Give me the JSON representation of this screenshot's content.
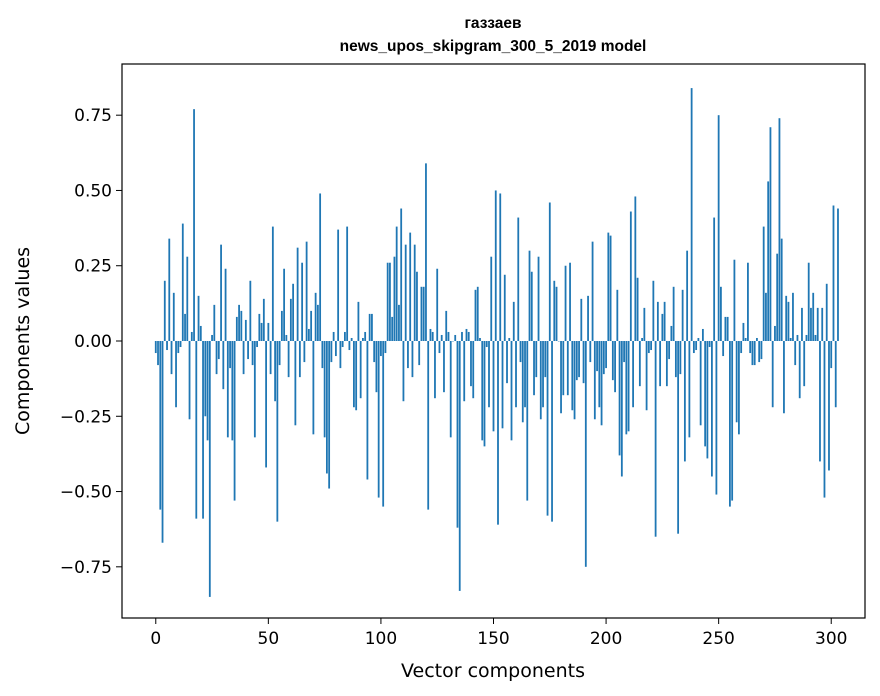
{
  "chart_data": {
    "type": "bar",
    "title_line1": "газзаев",
    "title_line2": "news_upos_skipgram_300_5_2019 model",
    "xlabel": "Vector components",
    "ylabel": "Components values",
    "xlim": [
      -15,
      315
    ],
    "ylim": [
      -0.92,
      0.92
    ],
    "xticks": [
      0,
      50,
      100,
      150,
      200,
      250,
      300
    ],
    "yticks": [
      -0.75,
      -0.5,
      -0.25,
      0.0,
      0.25,
      0.5,
      0.75
    ],
    "ytick_labels": [
      "−0.75",
      "−0.50",
      "−0.25",
      "0.00",
      "0.25",
      "0.50",
      "0.75"
    ],
    "xtick_labels": [
      "0",
      "50",
      "100",
      "150",
      "200",
      "250",
      "300"
    ],
    "bar_color": "#1f77b4",
    "values": [
      -0.04,
      -0.08,
      -0.56,
      -0.67,
      0.2,
      -0.03,
      0.34,
      -0.11,
      0.16,
      -0.22,
      -0.04,
      -0.02,
      0.39,
      0.09,
      0.28,
      -0.26,
      0.03,
      0.77,
      -0.59,
      0.15,
      0.05,
      -0.59,
      -0.25,
      -0.33,
      -0.85,
      0.02,
      0.12,
      -0.11,
      -0.06,
      0.32,
      -0.16,
      0.24,
      -0.32,
      -0.09,
      -0.33,
      -0.53,
      0.08,
      0.12,
      0.1,
      -0.11,
      0.07,
      -0.06,
      0.2,
      -0.08,
      -0.32,
      -0.02,
      0.09,
      0.06,
      0.14,
      -0.42,
      0.06,
      -0.11,
      0.38,
      -0.2,
      -0.6,
      -0.08,
      0.1,
      0.24,
      0.02,
      -0.12,
      0.14,
      0.19,
      -0.28,
      0.31,
      -0.12,
      0.26,
      -0.07,
      0.33,
      0.04,
      0.1,
      -0.31,
      0.16,
      0.12,
      0.49,
      -0.09,
      -0.32,
      -0.44,
      -0.49,
      -0.07,
      0.03,
      -0.05,
      0.37,
      -0.09,
      -0.02,
      0.03,
      0.38,
      -0.03,
      0.01,
      -0.22,
      -0.23,
      0.13,
      -0.19,
      0.01,
      0.03,
      -0.46,
      0.09,
      0.09,
      -0.07,
      -0.17,
      -0.52,
      -0.05,
      -0.55,
      -0.04,
      0.26,
      0.26,
      0.08,
      0.28,
      0.38,
      0.12,
      0.44,
      -0.2,
      0.32,
      -0.09,
      0.36,
      -0.12,
      0.32,
      0.23,
      -0.08,
      0.18,
      0.18,
      0.59,
      -0.56,
      0.04,
      0.03,
      -0.19,
      0.24,
      -0.04,
      0.02,
      -0.17,
      0.1,
      0.03,
      -0.32,
      0.0,
      0.02,
      -0.62,
      -0.83,
      0.03,
      -0.2,
      0.04,
      0.03,
      -0.15,
      -0.19,
      0.17,
      0.18,
      0.01,
      -0.33,
      -0.35,
      -0.02,
      -0.22,
      0.28,
      -0.3,
      0.5,
      -0.61,
      0.49,
      -0.29,
      0.22,
      -0.14,
      0.01,
      -0.33,
      0.13,
      -0.22,
      0.41,
      -0.07,
      -0.27,
      -0.22,
      -0.53,
      0.3,
      0.23,
      -0.18,
      -0.12,
      0.28,
      -0.26,
      -0.22,
      -0.12,
      -0.58,
      0.46,
      -0.6,
      0.2,
      0.18,
      0.0,
      -0.24,
      -0.18,
      0.25,
      -0.18,
      0.26,
      -0.23,
      -0.26,
      -0.13,
      -0.12,
      0.14,
      -0.14,
      -0.75,
      0.15,
      -0.07,
      0.33,
      -0.26,
      -0.1,
      -0.22,
      -0.28,
      -0.11,
      -0.09,
      0.36,
      0.35,
      -0.13,
      -0.17,
      0.17,
      -0.38,
      -0.45,
      -0.07,
      -0.31,
      -0.3,
      0.43,
      -0.22,
      0.48,
      0.21,
      -0.15,
      0.01,
      0.11,
      -0.23,
      -0.04,
      -0.03,
      0.2,
      -0.65,
      0.13,
      -0.15,
      0.09,
      0.13,
      -0.15,
      -0.06,
      0.05,
      0.18,
      -0.12,
      -0.64,
      -0.11,
      0.17,
      -0.4,
      0.3,
      -0.32,
      0.84,
      -0.04,
      -0.03,
      0.01,
      -0.28,
      0.04,
      -0.35,
      -0.39,
      -0.02,
      -0.45,
      0.41,
      -0.51,
      0.75,
      0.18,
      -0.05,
      0.08,
      0.08,
      -0.55,
      -0.53,
      0.27,
      -0.27,
      -0.31,
      -0.04,
      0.06,
      0.01,
      0.26,
      -0.04,
      -0.08,
      -0.08,
      0.01,
      -0.07,
      -0.06,
      0.38,
      0.16,
      0.53,
      0.71,
      -0.22,
      0.05,
      0.29,
      0.74,
      0.34,
      -0.24,
      0.15,
      0.13,
      0.01,
      0.16,
      -0.08,
      0.02,
      -0.19,
      0.11,
      -0.15,
      0.02,
      0.26,
      0.11,
      0.16,
      0.02,
      0.11,
      -0.4,
      0.11,
      -0.52,
      0.19,
      -0.43,
      -0.09,
      0.45,
      -0.22,
      0.44
    ]
  }
}
